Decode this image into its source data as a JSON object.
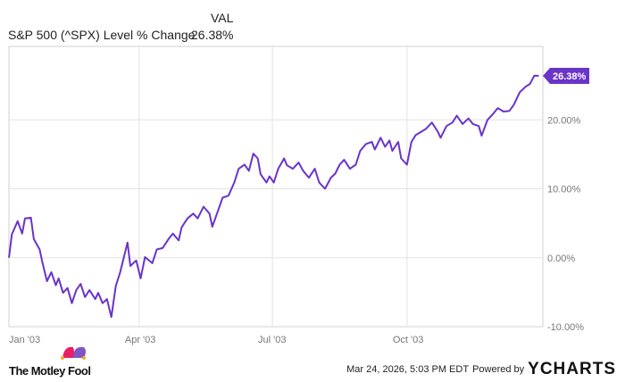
{
  "header": {
    "series_label": "S&P 500 (^SPX) Level % Change",
    "val_header": "VAL",
    "val": "26.38%"
  },
  "colors": {
    "line": "#6a34c9",
    "grid": "#e2e2e2",
    "axis_text": "#777777"
  },
  "footer": {
    "brand": "The Motley Fool",
    "timestamp": "Mar 24, 2026, 5:03 PM EDT",
    "powered_by": "Powered by",
    "ycharts": "YCHARTS"
  },
  "chart_data": {
    "type": "line",
    "title": "S&P 500 (^SPX) Level % Change",
    "xlabel": "",
    "ylabel": "",
    "x_unit": "day of 2003",
    "xlim": [
      0,
      363
    ],
    "ylim": [
      -10,
      30
    ],
    "grid": true,
    "y_ticks": [
      {
        "v": 20,
        "label": "20.00%"
      },
      {
        "v": 10,
        "label": "10.00%"
      },
      {
        "v": 0,
        "label": "0.00%"
      },
      {
        "v": -10,
        "label": "-10.00%"
      }
    ],
    "x_ticks": [
      {
        "v": 0,
        "label": "Jan '03"
      },
      {
        "v": 89,
        "label": "Apr '03"
      },
      {
        "v": 180,
        "label": "Jul '03"
      },
      {
        "v": 272,
        "label": "Oct '03"
      }
    ],
    "end_label": "26.38%",
    "series": [
      {
        "name": "S&P 500 (^SPX) Level % Change",
        "x": [
          0,
          2,
          6,
          9,
          11,
          15,
          17,
          21,
          23,
          26,
          29,
          32,
          34,
          37,
          40,
          43,
          46,
          49,
          52,
          55,
          59,
          61,
          64,
          67,
          70,
          73,
          76,
          81,
          83,
          87,
          90,
          93,
          98,
          101,
          105,
          109,
          112,
          116,
          118,
          122,
          126,
          129,
          133,
          137,
          139,
          143,
          146,
          150,
          154,
          157,
          161,
          164,
          167,
          170,
          172,
          176,
          178,
          181,
          184,
          188,
          190,
          194,
          198,
          201,
          205,
          209,
          212,
          216,
          220,
          223,
          226,
          229,
          233,
          237,
          240,
          244,
          248,
          250,
          254,
          257,
          260,
          262,
          266,
          268,
          272,
          275,
          278,
          282,
          285,
          289,
          293,
          295,
          299,
          303,
          306,
          310,
          314,
          317,
          321,
          323,
          327,
          331,
          334,
          338,
          342,
          345,
          349,
          353,
          356,
          359,
          362
        ],
        "values": [
          0,
          3.4,
          5.3,
          3.5,
          5.7,
          5.8,
          2.7,
          1.2,
          -0.8,
          -3.4,
          -2.1,
          -4.0,
          -3.0,
          -5.1,
          -4.4,
          -6.6,
          -4.7,
          -3.8,
          -5.7,
          -4.7,
          -6.0,
          -5.1,
          -6.6,
          -6.0,
          -8.6,
          -4.1,
          -2.1,
          2.2,
          -1.2,
          -0.4,
          -3.0,
          0.1,
          -0.8,
          1.2,
          1.4,
          2.7,
          3.5,
          2.5,
          4.4,
          5.7,
          6.4,
          5.7,
          7.4,
          6.4,
          4.5,
          6.9,
          8.7,
          9.0,
          10.9,
          12.9,
          13.5,
          12.6,
          15.1,
          14.4,
          12.1,
          10.9,
          11.8,
          10.9,
          12.9,
          14.4,
          13.4,
          12.9,
          13.8,
          12.6,
          11.6,
          12.9,
          10.9,
          10.0,
          11.6,
          12.2,
          13.5,
          14.2,
          12.9,
          13.5,
          15.5,
          16.5,
          16.8,
          15.7,
          17.4,
          16.1,
          17.0,
          15.5,
          16.8,
          14.4,
          13.5,
          16.8,
          17.8,
          18.3,
          18.7,
          19.6,
          18.3,
          17.4,
          19.1,
          19.6,
          20.6,
          19.4,
          20.2,
          19.4,
          19.1,
          17.7,
          20.0,
          20.9,
          21.7,
          21.2,
          21.3,
          22.2,
          24.0,
          24.8,
          25.2,
          26.4,
          26.38
        ]
      }
    ]
  }
}
